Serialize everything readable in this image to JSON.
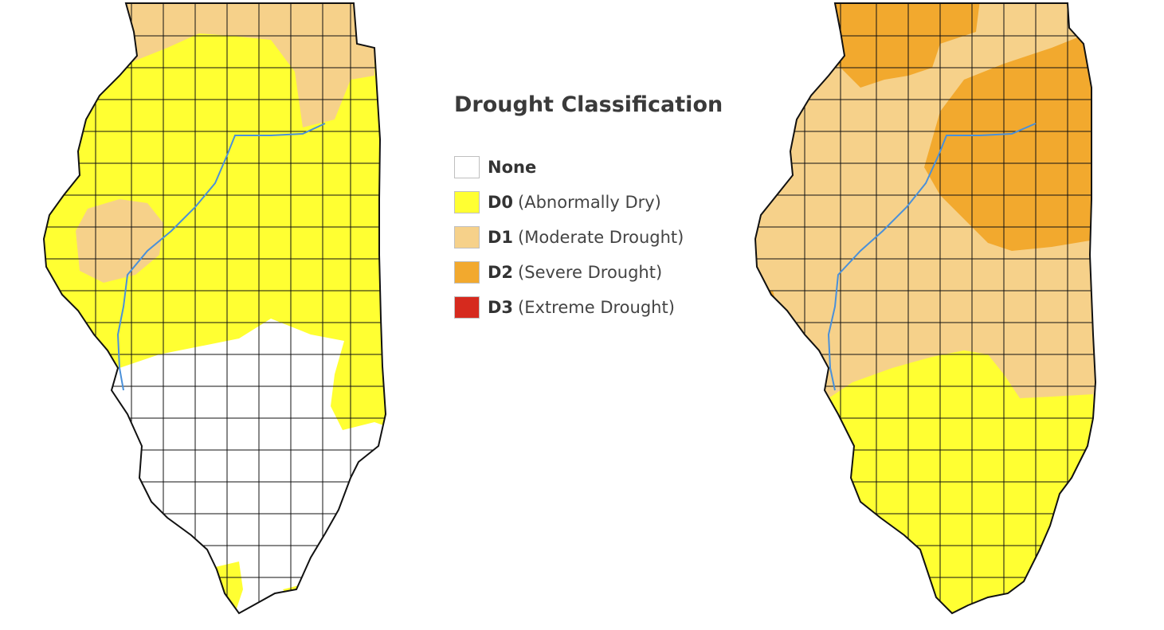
{
  "legend": {
    "title": "Drought Classification",
    "items": [
      {
        "code": "None",
        "desc": "",
        "color": "#ffffff"
      },
      {
        "code": "D0",
        "desc": "(Abnormally Dry)",
        "color": "#ffff32"
      },
      {
        "code": "D1",
        "desc": "(Moderate Drought)",
        "color": "#f6d18a"
      },
      {
        "code": "D2",
        "desc": "(Severe Drought)",
        "color": "#f2a92e"
      },
      {
        "code": "D3",
        "desc": "(Extreme Drought)",
        "color": "#d62a1e"
      }
    ]
  },
  "maps": [
    {
      "name": "left-map",
      "regions": [
        "None",
        "D0",
        "D1"
      ]
    },
    {
      "name": "right-map",
      "regions": [
        "D0",
        "D1",
        "D2"
      ]
    }
  ],
  "colors": {
    "county_border": "#111111",
    "river": "#4a90d9"
  }
}
